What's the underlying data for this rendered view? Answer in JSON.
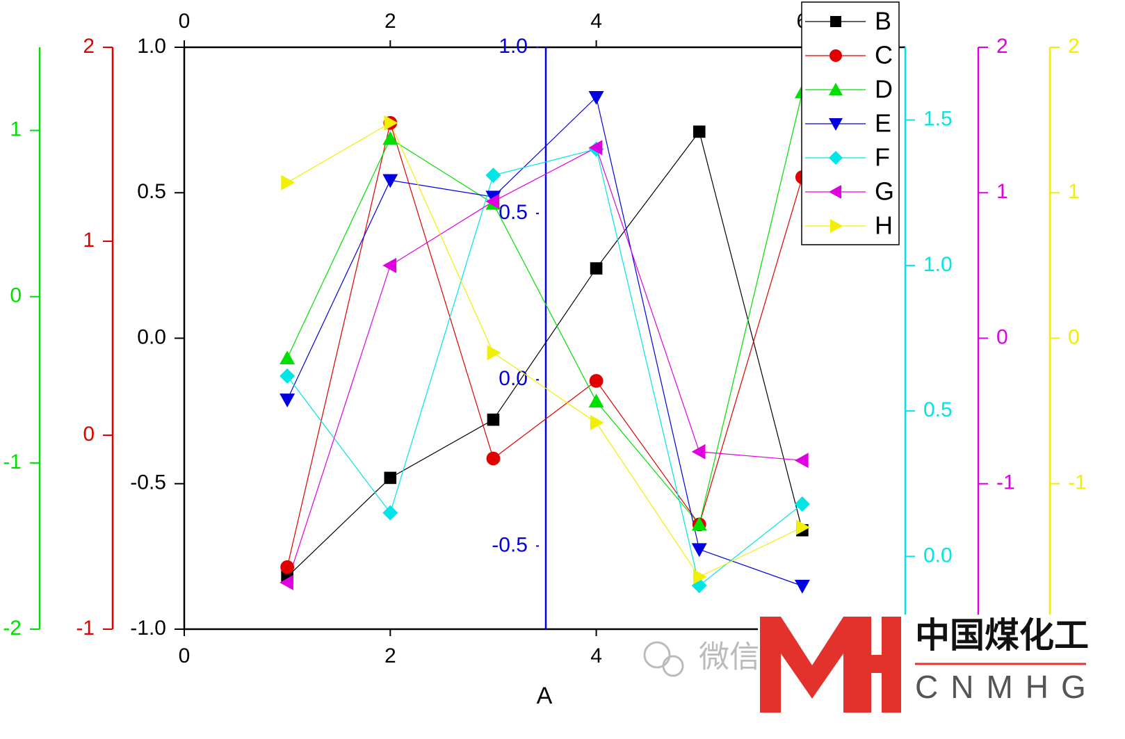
{
  "chart_data": {
    "type": "line",
    "xlabel": "A",
    "x": [
      1,
      2,
      3,
      4,
      5,
      6
    ],
    "xlim": [
      0,
      7
    ],
    "xticks": [
      0,
      2,
      4,
      6
    ],
    "legend": "top-right",
    "grid": false,
    "series": [
      {
        "name": "B",
        "color": "#000000",
        "marker": "square",
        "values": [
          -0.82,
          -0.48,
          -0.28,
          0.24,
          0.71,
          -0.66
        ],
        "ylim": [
          -1,
          1
        ],
        "yticks": [
          {
            "value": -1,
            "label": "-1.0"
          },
          {
            "value": -0.5,
            "label": "-0.5"
          },
          {
            "value": 0,
            "label": "0.0"
          },
          {
            "value": 0.5,
            "label": "0.5"
          },
          {
            "value": 1,
            "label": "1.0"
          }
        ]
      },
      {
        "name": "C",
        "color": "#e00000",
        "marker": "circle",
        "values": [
          -0.68,
          1.61,
          -0.12,
          0.28,
          -0.46,
          1.33
        ],
        "ylim": [
          -1,
          2
        ],
        "yticks": [
          -1,
          0,
          1,
          2
        ]
      },
      {
        "name": "D",
        "color": "#00e000",
        "marker": "triangle-up",
        "values": [
          -0.37,
          0.95,
          0.56,
          -0.63,
          -1.37,
          1.23
        ],
        "ylim": [
          -2,
          1.5
        ],
        "yticks": [
          -2,
          -1,
          0,
          1
        ]
      },
      {
        "name": "E",
        "color": "#0000e0",
        "marker": "triangle-down",
        "values": [
          -0.06,
          0.6,
          0.55,
          0.85,
          -0.51,
          -0.62
        ],
        "ylim": [
          -0.75,
          1
        ],
        "yticks": [
          {
            "value": -0.5,
            "label": "-0.5"
          },
          {
            "value": 0,
            "label": "0.0"
          },
          {
            "value": 0.5,
            "label": "0.5"
          },
          {
            "value": 1,
            "label": "1.0"
          }
        ]
      },
      {
        "name": "F",
        "color": "#00e5e5",
        "marker": "diamond",
        "values": [
          0.62,
          0.15,
          1.31,
          1.4,
          -0.1,
          0.18
        ],
        "ylim": [
          -0.25,
          1.75
        ],
        "yticks": [
          {
            "value": 0,
            "label": "0.0"
          },
          0.5,
          {
            "value": 1,
            "label": "1.0"
          },
          1.5
        ]
      },
      {
        "name": "G",
        "color": "#e000e0",
        "marker": "triangle-left",
        "values": [
          -1.68,
          0.5,
          0.94,
          1.31,
          -0.78,
          -0.84
        ],
        "ylim": [
          -2,
          2
        ],
        "yticks": [
          -1,
          0,
          1,
          2
        ]
      },
      {
        "name": "H",
        "color": "#f0f000",
        "marker": "triangle-right",
        "values": [
          1.07,
          1.48,
          -0.1,
          -0.58,
          -1.64,
          -1.3
        ],
        "ylim": [
          -2,
          2
        ],
        "yticks": [
          -1,
          0,
          1,
          2
        ]
      }
    ]
  },
  "watermark": {
    "app": "微信",
    "logo_cn": "中国煤化工",
    "logo_en": "CNMHG"
  }
}
